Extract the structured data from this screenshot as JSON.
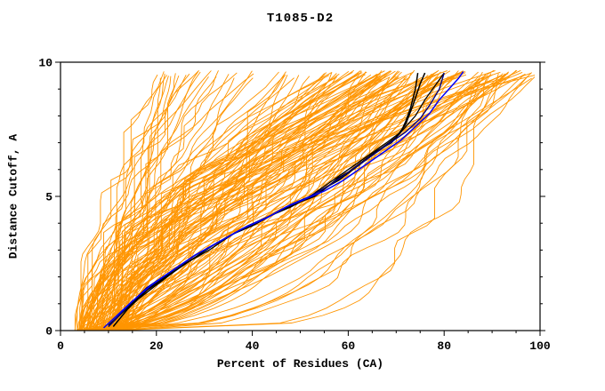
{
  "chart_data": {
    "type": "line",
    "title": "T1085-D2",
    "xlabel": "Percent of Residues (CA)",
    "ylabel": "Distance Cutoff, A",
    "xlim": [
      0,
      100
    ],
    "ylim": [
      0,
      10
    ],
    "x_ticks_major": [
      0,
      20,
      40,
      60,
      80,
      100
    ],
    "x_tick_minor_step": 5,
    "y_ticks_major": [
      0,
      5,
      10
    ],
    "y_tick_minor_step": 1,
    "grid": false,
    "legend": null,
    "frame_color": "#000000",
    "colors": {
      "ensemble_orange": "#ff9500",
      "highlight_black": "#000000",
      "highlight_blue": "#0000ff",
      "highlight_navy": "#000080"
    },
    "series": [
      {
        "name": "highlight-black-1",
        "color": "#000000",
        "width": 1.5,
        "points": [
          [
            10,
            0.15
          ],
          [
            13,
            0.7
          ],
          [
            16,
            1.2
          ],
          [
            20,
            1.8
          ],
          [
            24,
            2.3
          ],
          [
            28,
            2.8
          ],
          [
            33,
            3.3
          ],
          [
            38,
            3.8
          ],
          [
            42,
            4.1
          ],
          [
            46,
            4.5
          ],
          [
            50,
            4.8
          ],
          [
            53,
            5.0
          ],
          [
            56,
            5.4
          ],
          [
            58,
            5.7
          ],
          [
            60,
            5.9
          ],
          [
            63,
            6.3
          ],
          [
            66,
            6.7
          ],
          [
            69,
            7.0
          ],
          [
            71,
            7.4
          ],
          [
            72,
            7.8
          ],
          [
            73,
            8.3
          ],
          [
            74,
            9.0
          ],
          [
            74.5,
            9.6
          ]
        ]
      },
      {
        "name": "highlight-black-2",
        "color": "#000000",
        "width": 1.5,
        "points": [
          [
            11,
            0.15
          ],
          [
            14,
            0.8
          ],
          [
            18,
            1.5
          ],
          [
            22,
            2.0
          ],
          [
            27,
            2.6
          ],
          [
            32,
            3.2
          ],
          [
            37,
            3.7
          ],
          [
            41,
            4.0
          ],
          [
            45,
            4.4
          ],
          [
            49,
            4.7
          ],
          [
            52,
            5.0
          ],
          [
            55,
            5.3
          ],
          [
            58,
            5.6
          ],
          [
            61,
            6.0
          ],
          [
            64,
            6.4
          ],
          [
            67,
            6.8
          ],
          [
            70,
            7.2
          ],
          [
            72,
            7.7
          ],
          [
            73.5,
            8.4
          ],
          [
            75,
            9.2
          ],
          [
            76,
            9.6
          ]
        ]
      },
      {
        "name": "highlight-black-3",
        "color": "#000000",
        "width": 1.3,
        "points": [
          [
            10,
            0.2
          ],
          [
            15,
            1.0
          ],
          [
            20,
            1.7
          ],
          [
            26,
            2.5
          ],
          [
            31,
            3.0
          ],
          [
            36,
            3.6
          ],
          [
            40,
            3.9
          ],
          [
            44,
            4.3
          ],
          [
            48,
            4.6
          ],
          [
            52,
            5.0
          ],
          [
            56,
            5.5
          ],
          [
            60,
            6.0
          ],
          [
            64,
            6.5
          ],
          [
            68,
            7.0
          ],
          [
            71,
            7.4
          ],
          [
            74,
            8.0
          ],
          [
            76,
            8.6
          ],
          [
            78,
            9.1
          ],
          [
            80,
            9.6
          ]
        ]
      },
      {
        "name": "highlight-navy-1",
        "color": "#000080",
        "width": 1.4,
        "points": [
          [
            10,
            0.15
          ],
          [
            14,
            0.9
          ],
          [
            18,
            1.6
          ],
          [
            23,
            2.2
          ],
          [
            28,
            2.8
          ],
          [
            34,
            3.4
          ],
          [
            39,
            3.9
          ],
          [
            44,
            4.3
          ],
          [
            48,
            4.7
          ],
          [
            52,
            5.0
          ],
          [
            56,
            5.4
          ],
          [
            60,
            5.9
          ],
          [
            64,
            6.4
          ],
          [
            68,
            6.9
          ],
          [
            72,
            7.4
          ],
          [
            75,
            7.9
          ],
          [
            77,
            8.4
          ],
          [
            79,
            9.0
          ],
          [
            80,
            9.6
          ]
        ]
      },
      {
        "name": "highlight-blue-1",
        "color": "#0000ff",
        "width": 1.5,
        "points": [
          [
            9,
            0.1
          ],
          [
            12,
            0.6
          ],
          [
            15,
            1.1
          ],
          [
            19,
            1.7
          ],
          [
            23,
            2.2
          ],
          [
            28,
            2.8
          ],
          [
            33,
            3.3
          ],
          [
            38,
            3.8
          ],
          [
            43,
            4.2
          ],
          [
            47,
            4.6
          ],
          [
            51,
            4.9
          ],
          [
            55,
            5.2
          ],
          [
            59,
            5.6
          ],
          [
            63,
            6.1
          ],
          [
            67,
            6.6
          ],
          [
            71,
            7.1
          ],
          [
            74,
            7.6
          ],
          [
            77,
            8.1
          ],
          [
            79,
            8.6
          ],
          [
            81,
            9.0
          ],
          [
            83,
            9.4
          ],
          [
            84,
            9.65
          ]
        ]
      }
    ],
    "orange_ensemble": {
      "count": 150,
      "seed": 7,
      "x_start_range": [
        3,
        14
      ],
      "x_end_clusters": [
        {
          "weight": 0.22,
          "range": [
            20,
            55
          ]
        },
        {
          "weight": 0.53,
          "range": [
            55,
            85
          ]
        },
        {
          "weight": 0.25,
          "range": [
            86,
            100
          ]
        }
      ],
      "gamma_range": [
        0.4,
        2.2
      ],
      "wobble_range": [
        0.5,
        3.5
      ],
      "y_top_range": [
        9.4,
        9.7
      ]
    }
  }
}
